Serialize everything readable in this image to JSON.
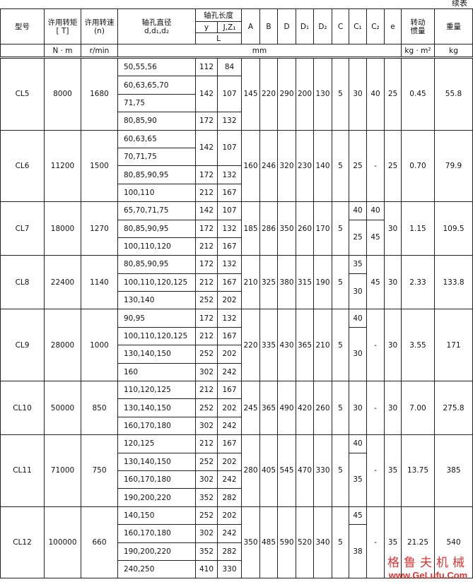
{
  "note": "续表",
  "header": {
    "model": "型号",
    "torque": "许用转矩",
    "torque_sym": "[ T]",
    "speed": "许用转速",
    "speed_sym": "(n)",
    "bore_dia": "轴孔直径",
    "bore_dia_sym": "d,d₁,d₂",
    "bore_len": "轴孔长度",
    "y": "y",
    "jz": "J,Z₁",
    "L": "L",
    "A": "A",
    "B": "B",
    "D": "D",
    "D1": "D₁",
    "D2": "D₂",
    "C": "C",
    "C1": "C₁",
    "C2": "C₂",
    "e": "e",
    "inertia": "转动",
    "inertia2": "惯量",
    "weight": "重量"
  },
  "units": {
    "torque": "N · m",
    "speed": "r/min",
    "length": "mm",
    "inertia": "kg · m²",
    "weight": "kg"
  },
  "groups": [
    {
      "model": "CL5",
      "torque": 8000,
      "speed": 1680,
      "bores": [
        {
          "diameters": [
            "50,55,56"
          ],
          "y": 112,
          "jz": 84
        },
        {
          "diameters": [
            "60,63,65,70",
            "71,75"
          ],
          "y": 142,
          "jz": 107
        },
        {
          "diameters": [
            "80,85,90"
          ],
          "y": 172,
          "jz": 132
        }
      ],
      "A": 145,
      "B": 220,
      "D": 290,
      "D1": 200,
      "D2": 130,
      "C": 5,
      "C1": [
        30
      ],
      "C2": [
        40
      ],
      "e": 25,
      "inertia": "0.45",
      "weight": 55.8
    },
    {
      "model": "CL6",
      "torque": 11200,
      "speed": 1500,
      "bores": [
        {
          "diameters": [
            "60,63,65",
            "70,71,75"
          ],
          "y": 142,
          "jz": 107
        },
        {
          "diameters": [
            "80,85,90,95"
          ],
          "y": 172,
          "jz": 132
        },
        {
          "diameters": [
            "100,110"
          ],
          "y": 212,
          "jz": 167
        }
      ],
      "A": 160,
      "B": 246,
      "D": 320,
      "D1": 230,
      "D2": 140,
      "C": 5,
      "C1": [
        25
      ],
      "C2": [
        "-"
      ],
      "e": 25,
      "inertia": "0.70",
      "weight": 79.9
    },
    {
      "model": "CL7",
      "torque": 18000,
      "speed": 1270,
      "bores": [
        {
          "diameters": [
            "65,70,71,75"
          ],
          "y": 142,
          "jz": 107
        },
        {
          "diameters": [
            "80,85,90,95"
          ],
          "y": 172,
          "jz": 132
        },
        {
          "diameters": [
            "100,110,120"
          ],
          "y": 212,
          "jz": 167
        }
      ],
      "A": 185,
      "B": 286,
      "D": 350,
      "D1": 260,
      "D2": 170,
      "C": 5,
      "C1": [
        40,
        25
      ],
      "C2": [
        40,
        45
      ],
      "e": 30,
      "inertia": "1.15",
      "weight": 109.5
    },
    {
      "model": "CL8",
      "torque": 22400,
      "speed": 1140,
      "bores": [
        {
          "diameters": [
            "80,85,90,95"
          ],
          "y": 172,
          "jz": 132
        },
        {
          "diameters": [
            "100,110,120,125"
          ],
          "y": 212,
          "jz": 167
        },
        {
          "diameters": [
            "130,140"
          ],
          "y": 252,
          "jz": 202
        }
      ],
      "A": 210,
      "B": 325,
      "D": 380,
      "D1": 315,
      "D2": 190,
      "C": 5,
      "C1": [
        35,
        30
      ],
      "C2": [
        45
      ],
      "e": 30,
      "inertia": "2.33",
      "weight": 133.8
    },
    {
      "model": "CL9",
      "torque": 28000,
      "speed": 1000,
      "bores": [
        {
          "diameters": [
            "90,95"
          ],
          "y": 172,
          "jz": 132
        },
        {
          "diameters": [
            "100,110,120,125"
          ],
          "y": 212,
          "jz": 167
        },
        {
          "diameters": [
            "130,140,150"
          ],
          "y": 252,
          "jz": 202
        },
        {
          "diameters": [
            "160"
          ],
          "y": 302,
          "jz": 242
        }
      ],
      "A": 220,
      "B": 335,
      "D": 430,
      "D1": 365,
      "D2": 210,
      "C": 5,
      "C1": [
        40,
        30
      ],
      "C2": [
        "-"
      ],
      "e": 30,
      "inertia": "3.55",
      "weight": 171
    },
    {
      "model": "CL10",
      "torque": 50000,
      "speed": 850,
      "bores": [
        {
          "diameters": [
            "110,120,125"
          ],
          "y": 212,
          "jz": 167
        },
        {
          "diameters": [
            "130,140,150"
          ],
          "y": 252,
          "jz": 202
        },
        {
          "diameters": [
            "160,170,180"
          ],
          "y": 302,
          "jz": 242
        }
      ],
      "A": 245,
      "B": 365,
      "D": 490,
      "D1": 420,
      "D2": 260,
      "C": 5,
      "C1": [
        30
      ],
      "C2": [
        "-"
      ],
      "e": 30,
      "inertia": "7.00",
      "weight": 275.8
    },
    {
      "model": "CL11",
      "torque": 71000,
      "speed": 750,
      "bores": [
        {
          "diameters": [
            "120,125"
          ],
          "y": 212,
          "jz": 167
        },
        {
          "diameters": [
            "130,140,150"
          ],
          "y": 252,
          "jz": 202
        },
        {
          "diameters": [
            "160,170,180"
          ],
          "y": 302,
          "jz": 242
        },
        {
          "diameters": [
            "190,200,220"
          ],
          "y": 352,
          "jz": 282
        }
      ],
      "A": 280,
      "B": 405,
      "D": 545,
      "D1": 470,
      "D2": 330,
      "C": 5,
      "C1": [
        40,
        35
      ],
      "C2": [
        "-"
      ],
      "e": 35,
      "inertia": "13.75",
      "weight": 385
    },
    {
      "model": "CL12",
      "torque": 100000,
      "speed": 660,
      "bores": [
        {
          "diameters": [
            "140,150"
          ],
          "y": 252,
          "jz": 202
        },
        {
          "diameters": [
            "160,170,180"
          ],
          "y": 302,
          "jz": 242
        },
        {
          "diameters": [
            "190,200,220"
          ],
          "y": 352,
          "jz": 282
        },
        {
          "diameters": [
            "240,250"
          ],
          "y": 410,
          "jz": 330
        }
      ],
      "A": 350,
      "B": 485,
      "D": 590,
      "D1": 520,
      "D2": 340,
      "C": 5,
      "C1": [
        45,
        38
      ],
      "C2": [
        "-"
      ],
      "e": 35,
      "inertia": "21.25",
      "weight": 540
    }
  ],
  "watermark": {
    "brand": "格鲁夫机械",
    "url": "www.GeLufu.Com"
  }
}
